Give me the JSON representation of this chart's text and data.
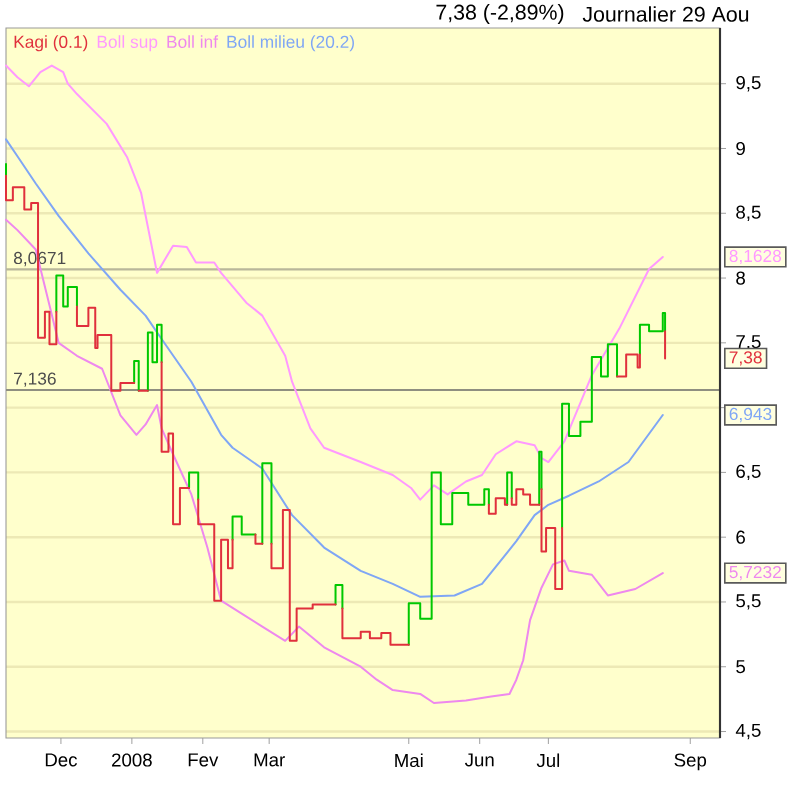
{
  "chart_data": {
    "type": "line",
    "title": "7,38 (-2,89%)",
    "subtitle": "Journalier 29 Aou",
    "xlim": [
      "2007-11-07",
      "2008-09-14"
    ],
    "ylim": [
      4.45,
      9.93
    ],
    "xticks": [
      {
        "value": "2007-12-01",
        "label": "Dec"
      },
      {
        "value": "2008-01-01",
        "label": "2008"
      },
      {
        "value": "2008-02-01",
        "label": "Fev"
      },
      {
        "value": "2008-03-01",
        "label": "Mar"
      },
      {
        "value": "2008-05-01",
        "label": "Mai"
      },
      {
        "value": "2008-06-01",
        "label": "Jun"
      },
      {
        "value": "2008-07-01",
        "label": "Jul"
      },
      {
        "value": "2008-09-01",
        "label": "Sep"
      }
    ],
    "yticks": [
      {
        "value": 4.5,
        "label": "4,5"
      },
      5,
      {
        "value": 5.5,
        "label": "5,5"
      },
      6,
      {
        "value": 6.5,
        "label": "6,5"
      },
      {
        "value": 7,
        "label": null
      },
      {
        "value": 7.5,
        "label": "7,5"
      },
      8,
      {
        "value": 8.5,
        "label": "8,5"
      },
      9,
      {
        "value": 9.5,
        "label": "9,5"
      }
    ],
    "grid": "y",
    "legend": "top left",
    "ref_lines": [
      {
        "axis": "y",
        "value": 8.0671,
        "label": "8,0671",
        "color": "#b9b79a"
      },
      {
        "axis": "y",
        "value": 7.136,
        "label": "7,136",
        "color": "#8f8f80"
      }
    ],
    "annotations": [
      {
        "text": "8,1628",
        "y": 8.1628
      },
      {
        "text": "7,38",
        "y": 7.38
      },
      {
        "text": "6,943",
        "y": 6.943
      },
      {
        "text": "5,7232",
        "y": 5.7232
      }
    ],
    "series": [
      {
        "name": "Kagi (0.1)",
        "color": "#e0303c",
        "x": [
          "2007-11-07",
          "2007-11-07",
          "2007-11-10",
          "2007-11-10",
          "2007-11-15",
          "2007-11-15",
          "2007-11-18",
          "2007-11-18",
          "2007-11-21",
          "2007-11-21",
          "2007-11-24",
          "2007-11-24",
          "2007-11-26",
          "2007-11-26",
          "2007-11-29",
          "2007-11-29",
          null,
          "2007-12-08",
          "2007-12-08",
          "2007-12-13",
          "2007-12-13",
          "2007-12-16",
          "2007-12-16",
          "2007-12-17",
          "2007-12-17",
          "2007-12-23",
          "2007-12-23",
          "2007-12-27",
          "2007-12-27",
          "2008-01-02",
          null,
          "2008-01-04",
          "2008-01-08",
          null,
          "2008-01-14",
          "2008-01-14",
          "2008-01-17",
          "2008-01-17",
          "2008-01-19",
          "2008-01-19",
          "2008-01-22",
          "2008-01-22",
          "2008-01-26",
          null,
          "2008-01-30",
          "2008-01-30",
          "2008-02-06",
          "2008-02-06",
          "2008-02-09",
          "2008-02-09",
          "2008-02-12",
          "2008-02-12",
          "2008-02-14",
          "2008-02-14",
          null,
          "2008-02-24",
          "2008-02-24",
          "2008-02-27",
          null,
          "2008-03-02",
          "2008-03-02",
          "2008-03-07",
          "2008-03-07",
          "2008-03-10",
          "2008-03-10",
          "2008-03-13",
          "2008-03-13",
          "2008-03-20",
          "2008-03-20",
          "2008-03-30",
          null,
          "2008-04-02",
          "2008-04-02",
          "2008-04-10",
          "2008-04-10",
          "2008-04-14",
          "2008-04-14",
          "2008-04-19",
          "2008-04-19",
          "2008-04-23",
          "2008-04-23",
          "2008-05-01",
          null,
          "2008-06-05",
          "2008-06-05",
          "2008-06-08",
          "2008-06-08",
          "2008-06-12",
          "2008-06-12",
          "2008-06-13",
          null,
          "2008-06-15",
          "2008-06-15",
          "2008-06-17",
          "2008-06-17",
          "2008-06-20",
          "2008-06-20",
          "2008-06-23",
          "2008-06-23",
          "2008-06-27",
          null,
          "2008-06-28",
          "2008-06-28",
          "2008-06-30",
          "2008-06-30",
          "2008-07-04",
          "2008-07-04",
          "2008-07-07",
          "2008-07-07",
          null,
          "2008-07-31",
          "2008-08-04",
          "2008-08-04",
          "2008-08-09",
          "2008-08-09",
          "2008-08-10",
          "2008-08-10",
          null,
          "2008-08-21",
          "2008-08-21"
        ],
        "values": [
          8.79,
          8.6,
          8.6,
          8.7,
          8.7,
          8.53,
          8.53,
          8.58,
          8.58,
          7.54,
          7.54,
          7.74,
          7.74,
          7.49,
          7.49,
          7.74,
          null,
          7.78,
          7.63,
          7.63,
          7.77,
          7.77,
          7.46,
          7.46,
          7.56,
          7.56,
          7.13,
          7.13,
          7.19,
          7.19,
          null,
          7.13,
          7.13,
          null,
          7.35,
          6.66,
          6.66,
          6.8,
          6.8,
          6.1,
          6.1,
          6.38,
          6.38,
          null,
          6.29,
          6.1,
          6.1,
          5.51,
          5.51,
          5.98,
          5.98,
          5.76,
          5.76,
          5.98,
          null,
          6.02,
          5.95,
          5.95,
          null,
          5.95,
          5.76,
          5.76,
          6.21,
          6.21,
          5.2,
          5.2,
          5.45,
          5.45,
          5.48,
          5.48,
          null,
          5.45,
          5.22,
          5.22,
          5.27,
          5.27,
          5.22,
          5.22,
          5.26,
          5.26,
          5.17,
          5.17,
          null,
          6.25,
          6.18,
          6.18,
          6.3,
          6.3,
          6.25,
          6.25,
          null,
          6.3,
          6.25,
          6.25,
          6.37,
          6.37,
          6.33,
          6.33,
          6.25,
          6.25,
          null,
          6.37,
          5.89,
          5.89,
          6.07,
          6.07,
          5.6,
          5.6,
          6.07,
          null,
          7.24,
          7.24,
          7.41,
          7.41,
          7.31,
          7.31,
          7.41,
          null,
          7.59,
          7.38
        ]
      },
      {
        "color": "#00c800",
        "x": [
          "2007-11-07",
          "2007-11-07",
          null,
          "2007-11-29",
          "2007-11-29",
          "2007-12-02",
          "2007-12-02",
          "2007-12-04",
          "2007-12-04",
          "2007-12-08",
          "2007-12-08",
          null,
          "2008-01-02",
          "2008-01-02",
          "2008-01-04",
          "2008-01-04",
          null,
          "2008-01-08",
          "2008-01-08",
          "2008-01-10",
          "2008-01-10",
          "2008-01-12",
          "2008-01-12",
          "2008-01-14",
          "2008-01-14",
          null,
          "2008-01-26",
          "2008-01-26",
          "2008-01-30",
          "2008-01-30",
          null,
          "2008-02-14",
          "2008-02-14",
          "2008-02-18",
          "2008-02-18",
          "2008-02-24",
          null,
          "2008-02-27",
          "2008-02-27",
          "2008-03-02",
          "2008-03-02",
          null,
          "2008-03-30",
          "2008-03-30",
          "2008-04-02",
          "2008-04-02",
          null,
          "2008-05-01",
          "2008-05-01",
          "2008-05-06",
          "2008-05-06",
          "2008-05-11",
          "2008-05-11",
          "2008-05-15",
          "2008-05-15",
          "2008-05-20",
          "2008-05-20",
          "2008-05-27",
          "2008-05-27",
          "2008-06-03",
          "2008-06-03",
          "2008-06-05",
          "2008-06-05",
          null,
          "2008-06-13",
          "2008-06-13",
          "2008-06-15",
          "2008-06-15",
          null,
          "2008-06-27",
          "2008-06-27",
          "2008-06-28",
          "2008-06-28",
          null,
          "2008-07-07",
          "2008-07-07",
          "2008-07-10",
          "2008-07-10",
          "2008-07-15",
          "2008-07-15",
          "2008-07-20",
          "2008-07-20",
          "2008-07-24",
          "2008-07-24",
          "2008-07-27",
          "2008-07-27",
          "2008-07-31",
          "2008-07-31",
          null,
          "2008-08-10",
          "2008-08-10",
          "2008-08-14",
          "2008-08-14",
          "2008-08-20",
          "2008-08-20",
          "2008-08-21",
          "2008-08-21"
        ],
        "values": [
          8.88,
          8.79,
          null,
          7.74,
          8.02,
          8.02,
          7.78,
          7.78,
          7.93,
          7.93,
          7.78,
          null,
          7.19,
          7.36,
          7.36,
          7.13,
          null,
          7.13,
          7.58,
          7.58,
          7.35,
          7.35,
          7.64,
          7.64,
          7.35,
          null,
          6.38,
          6.5,
          6.5,
          6.29,
          null,
          5.98,
          6.16,
          6.16,
          6.02,
          6.02,
          null,
          5.95,
          6.57,
          6.57,
          5.95,
          null,
          5.48,
          5.63,
          5.63,
          5.45,
          null,
          5.17,
          5.49,
          5.49,
          5.37,
          5.37,
          6.5,
          6.5,
          6.1,
          6.1,
          6.34,
          6.34,
          6.25,
          6.25,
          6.37,
          6.37,
          6.25,
          null,
          6.25,
          6.5,
          6.5,
          6.3,
          null,
          6.25,
          6.66,
          6.66,
          6.37,
          null,
          6.07,
          7.03,
          7.03,
          6.78,
          6.78,
          6.89,
          6.89,
          7.39,
          7.39,
          7.24,
          7.24,
          7.49,
          7.49,
          7.24,
          null,
          7.41,
          7.64,
          7.64,
          7.59,
          7.59,
          7.73,
          7.73,
          7.59
        ]
      },
      {
        "name": "Boll sup",
        "color": "#ff99ff",
        "x": [
          "2007-11-07",
          "2007-11-12",
          "2007-11-17",
          "2007-11-22",
          "2007-11-27",
          "2007-12-02",
          "2007-12-04",
          "2007-12-08",
          "2007-12-21",
          "2007-12-30",
          "2008-01-05",
          "2008-01-12",
          "2008-01-19",
          "2008-01-25",
          "2008-01-29",
          "2008-02-06",
          "2008-02-09",
          "2008-02-20",
          "2008-02-27",
          "2008-03-08",
          "2008-03-11",
          "2008-03-19",
          "2008-03-25",
          "2008-04-10",
          "2008-04-24",
          "2008-05-02",
          "2008-05-06",
          "2008-05-12",
          "2008-05-18",
          "2008-05-26",
          "2008-06-02",
          "2008-06-08",
          "2008-06-17",
          "2008-06-25",
          "2008-06-28",
          "2008-07-01",
          "2008-07-08",
          "2008-07-20",
          "2008-08-01",
          "2008-08-14",
          "2008-08-20"
        ],
        "values": [
          9.64,
          9.55,
          9.48,
          9.59,
          9.64,
          9.59,
          9.5,
          9.42,
          9.19,
          8.93,
          8.66,
          8.04,
          8.25,
          8.24,
          8.12,
          8.12,
          8.04,
          7.81,
          7.71,
          7.4,
          7.2,
          6.84,
          6.69,
          6.58,
          6.48,
          6.38,
          6.29,
          6.4,
          6.33,
          6.43,
          6.48,
          6.64,
          6.74,
          6.71,
          6.61,
          6.58,
          6.74,
          7.25,
          7.61,
          8.07,
          8.1628
        ]
      },
      {
        "name": "Boll inf",
        "color": "#ee88ee",
        "x": [
          "2007-11-07",
          "2007-11-12",
          "2007-11-20",
          "2007-11-26",
          "2007-11-30",
          "2007-12-08",
          "2007-12-19",
          "2007-12-27",
          "2008-01-03",
          "2008-01-07",
          "2008-01-12",
          "2008-01-14",
          "2008-01-19",
          "2008-01-27",
          "2008-02-03",
          "2008-02-09",
          "2008-02-18",
          "2008-02-27",
          "2008-03-08",
          "2008-03-14",
          "2008-03-25",
          "2008-04-10",
          "2008-04-17",
          "2008-04-24",
          "2008-05-06",
          "2008-05-12",
          "2008-05-26",
          "2008-06-06",
          "2008-06-14",
          "2008-06-17",
          "2008-06-20",
          "2008-06-23",
          "2008-06-28",
          "2008-07-03",
          "2008-07-08",
          "2008-07-10",
          "2008-07-20",
          "2008-07-27",
          "2008-08-08",
          "2008-08-20"
        ],
        "values": [
          8.45,
          8.37,
          8.22,
          7.79,
          7.5,
          7.4,
          7.3,
          6.94,
          6.79,
          6.87,
          7.02,
          6.84,
          6.64,
          6.33,
          5.92,
          5.51,
          5.41,
          5.31,
          5.2,
          5.31,
          5.15,
          5.0,
          4.9,
          4.82,
          4.79,
          4.72,
          4.74,
          4.77,
          4.79,
          4.9,
          5.05,
          5.36,
          5.61,
          5.79,
          5.82,
          5.74,
          5.71,
          5.55,
          5.6,
          5.7232
        ]
      },
      {
        "name": "Boll milieu (20.2)",
        "color": "#7fa6f5",
        "x": [
          "2007-11-07",
          "2007-11-12",
          "2007-11-20",
          "2007-11-30",
          "2007-12-13",
          "2007-12-27",
          "2008-01-07",
          "2008-01-14",
          "2008-01-27",
          "2008-02-09",
          "2008-02-14",
          "2008-02-27",
          "2008-03-11",
          "2008-03-25",
          "2008-04-10",
          "2008-04-24",
          "2008-05-06",
          "2008-05-21",
          "2008-06-02",
          "2008-06-08",
          "2008-06-17",
          "2008-06-25",
          "2008-07-01",
          "2008-07-10",
          "2008-07-23",
          "2008-08-05",
          "2008-08-20"
        ],
        "values": [
          9.07,
          8.94,
          8.73,
          8.48,
          8.19,
          7.91,
          7.71,
          7.53,
          7.2,
          6.79,
          6.69,
          6.53,
          6.17,
          5.92,
          5.74,
          5.64,
          5.54,
          5.55,
          5.64,
          5.77,
          5.97,
          6.17,
          6.25,
          6.32,
          6.43,
          6.58,
          6.943
        ]
      }
    ]
  }
}
